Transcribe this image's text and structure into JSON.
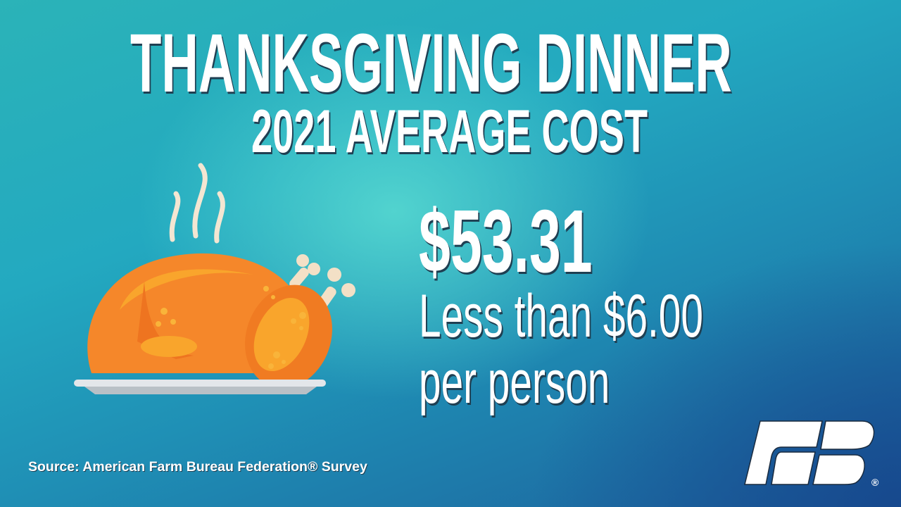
{
  "title": "THANKSGIVING DINNER",
  "subtitle": "2021 AVERAGE COST",
  "price": "$53.31",
  "per_person_line1": "Less than $6.00",
  "per_person_line2": "per person",
  "source": "Source: American Farm Bureau Federation® Survey",
  "logo": {
    "text": "FB",
    "registered": "®"
  },
  "illustration": "roast-turkey-on-platter",
  "colors": {
    "bg_teal": "#2bb3b8",
    "bg_blue": "#1c5f9c",
    "turkey_orange": "#f5872a",
    "text": "#ffffff"
  }
}
